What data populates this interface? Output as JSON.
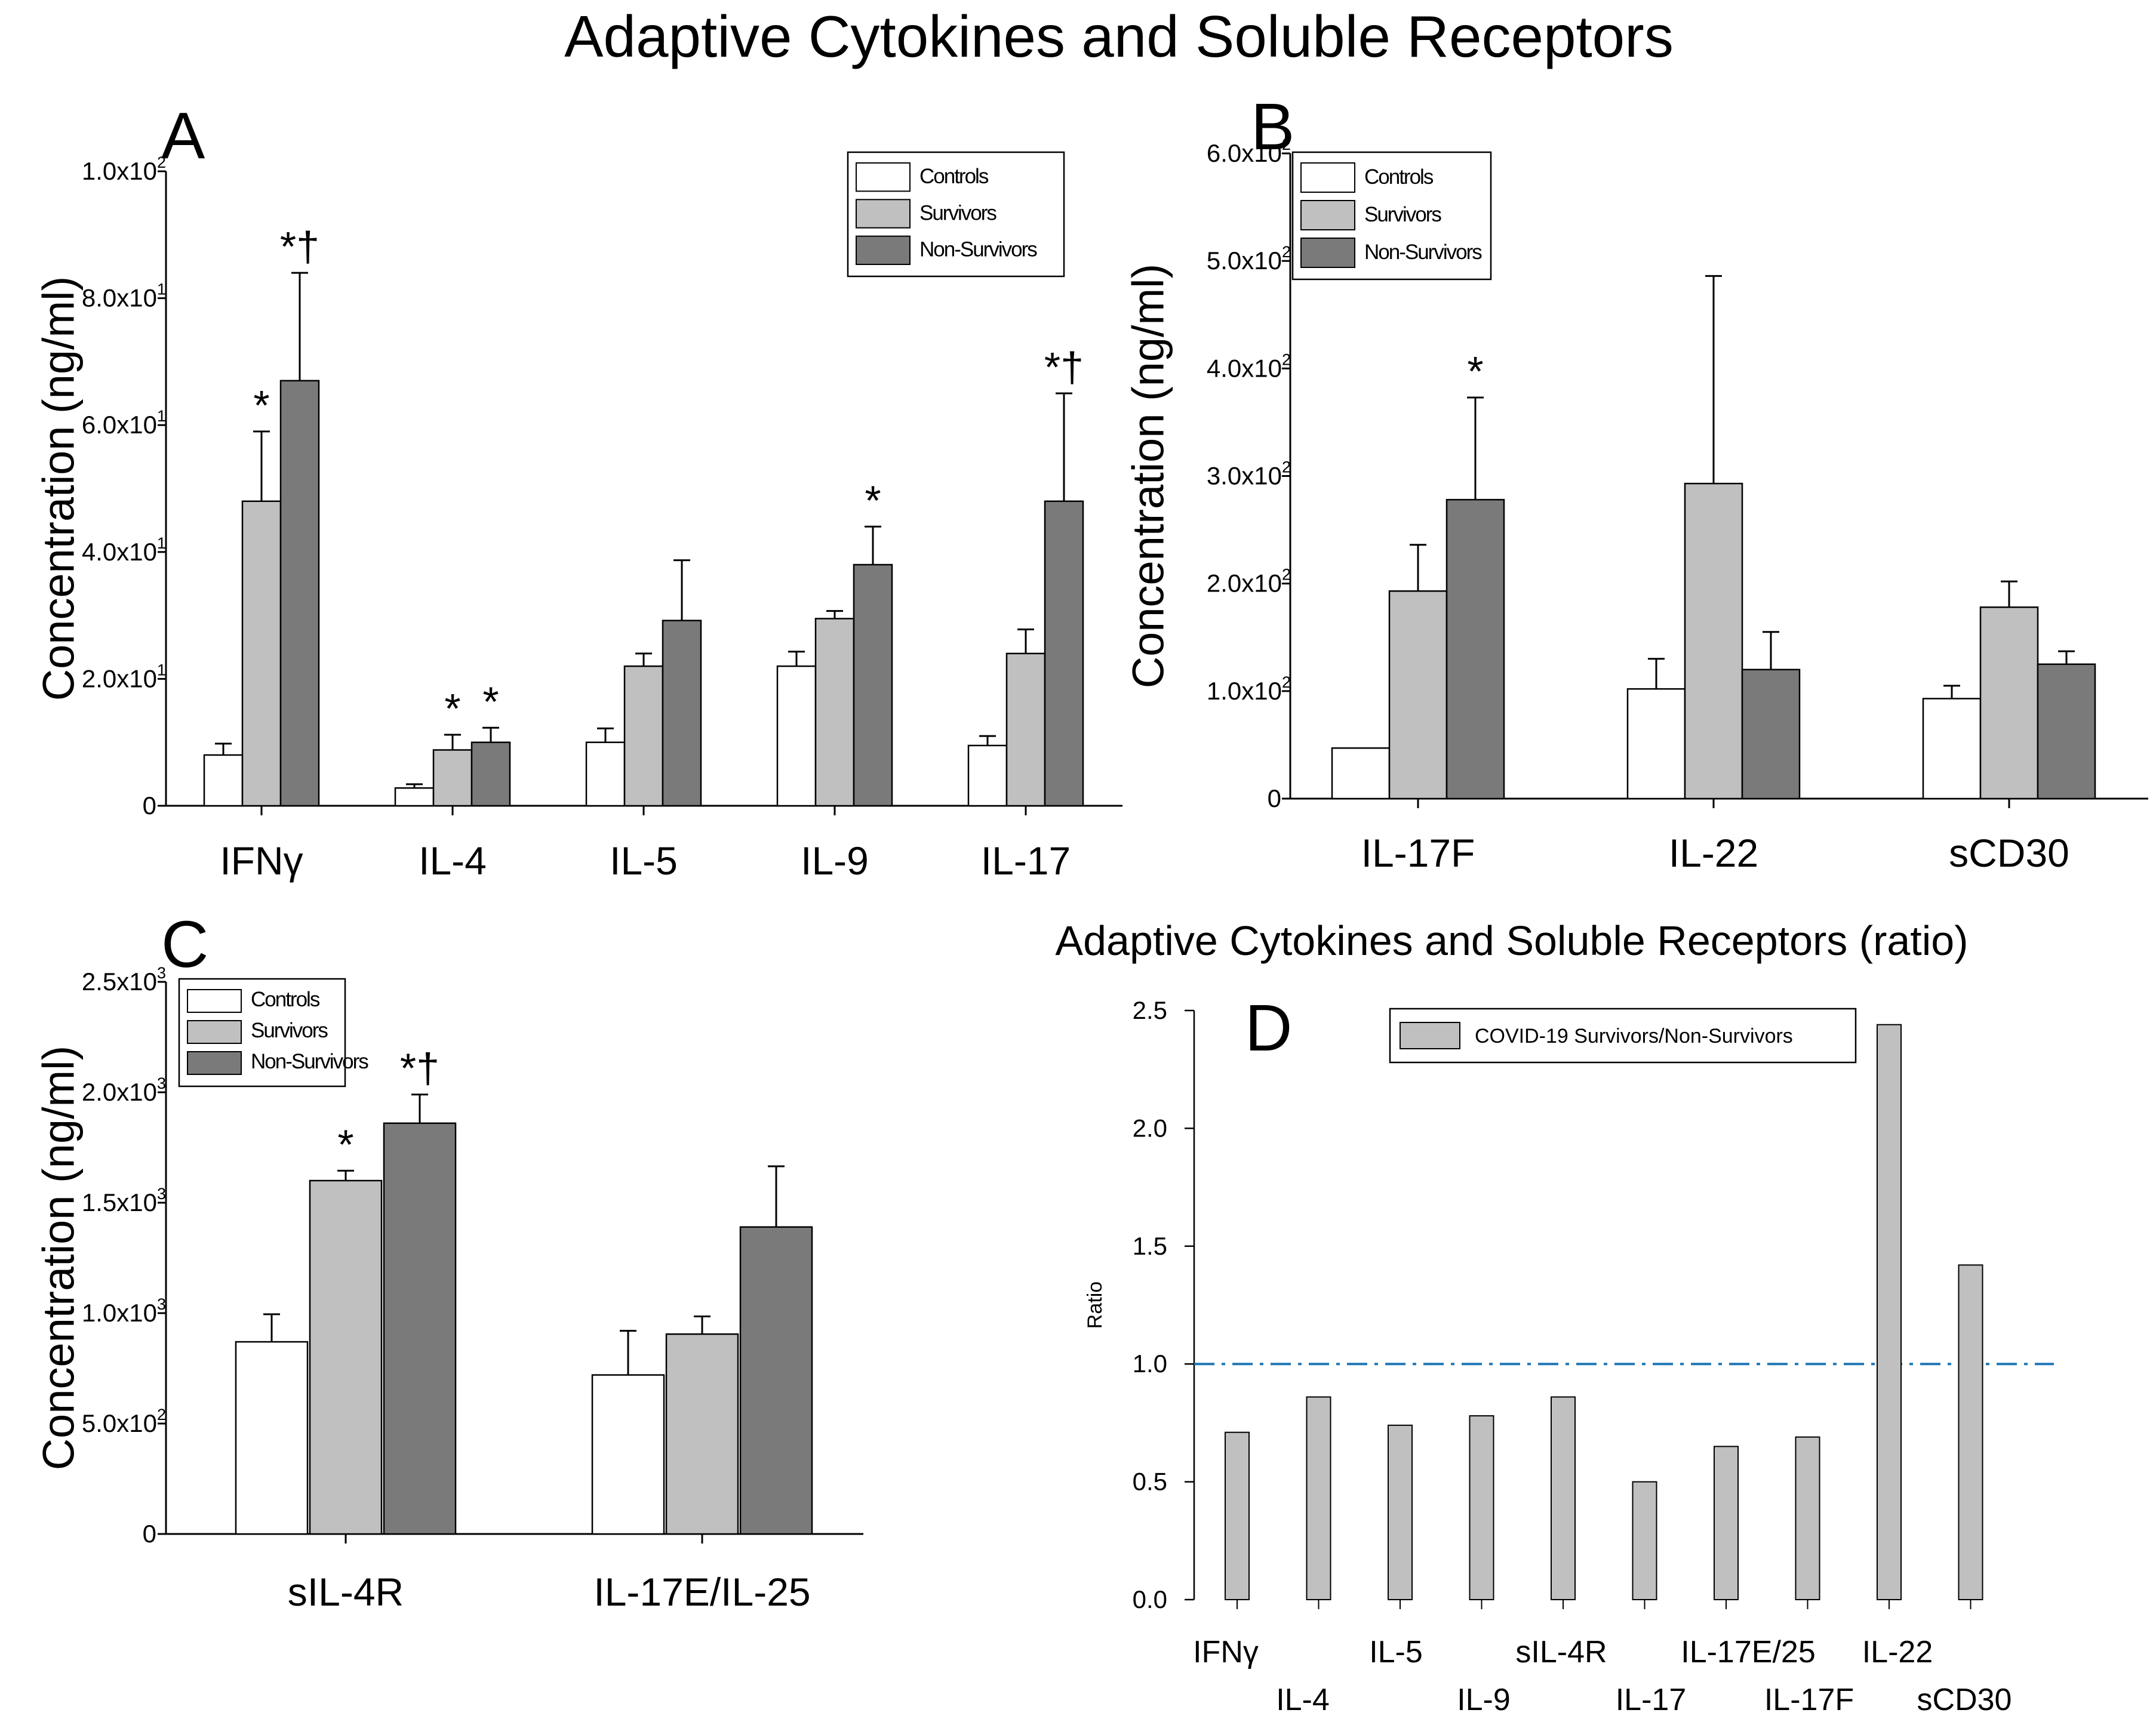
{
  "title": "Adaptive Cytokines and Soluble Receptors",
  "colors": {
    "controls": "#ffffff",
    "survivors": "#c0c0c0",
    "non_survivors": "#7a7a7a",
    "ratio_bar": "#c0c0c0",
    "reference_line": "#1f77b4"
  },
  "chart_data": [
    {
      "panel": "A",
      "type": "bar",
      "ylabel": "Concentration  (ng/ml)",
      "ylim": [
        0,
        100
      ],
      "yticks": [
        {
          "value": 0,
          "base": "0",
          "exp": ""
        },
        {
          "value": 20,
          "base": "2.0x10",
          "exp": "1"
        },
        {
          "value": 40,
          "base": "4.0x10",
          "exp": "1"
        },
        {
          "value": 60,
          "base": "6.0x10",
          "exp": "1"
        },
        {
          "value": 80,
          "base": "8.0x10",
          "exp": "1"
        },
        {
          "value": 100,
          "base": "1.0x10",
          "exp": "2"
        }
      ],
      "legend": {
        "position": "top-right",
        "entries": [
          "Controls",
          "Survivors",
          "Non-Survivors"
        ]
      },
      "categories": [
        "IFNγ",
        "IL-4",
        "IL-5",
        "IL-9",
        "IL-17"
      ],
      "series": [
        {
          "name": "Controls",
          "values": [
            8,
            2.8,
            10,
            22,
            9.5
          ],
          "errors": [
            1.8,
            0.6,
            2.2,
            2.3,
            1.5
          ]
        },
        {
          "name": "Survivors",
          "values": [
            48,
            8.8,
            22,
            29.5,
            24
          ],
          "errors": [
            11,
            2.4,
            2,
            1.2,
            3.8
          ]
        },
        {
          "name": "Non-Survivors",
          "values": [
            67,
            10,
            29.2,
            38,
            48
          ],
          "errors": [
            17,
            2.3,
            9.5,
            6,
            17
          ]
        }
      ],
      "annotations": [
        {
          "category": 0,
          "series": 1,
          "text": "*"
        },
        {
          "category": 0,
          "series": 2,
          "text": "*†"
        },
        {
          "category": 1,
          "series": 1,
          "text": "*"
        },
        {
          "category": 1,
          "series": 2,
          "text": "*"
        },
        {
          "category": 3,
          "series": 2,
          "text": "*"
        },
        {
          "category": 4,
          "series": 2,
          "text": "*†"
        }
      ]
    },
    {
      "panel": "B",
      "type": "bar",
      "ylabel": "Concentration  (ng/ml)",
      "ylim": [
        0,
        600
      ],
      "yticks": [
        {
          "value": 0,
          "base": "0",
          "exp": ""
        },
        {
          "value": 100,
          "base": "1.0x10",
          "exp": "2"
        },
        {
          "value": 200,
          "base": "2.0x10",
          "exp": "2"
        },
        {
          "value": 300,
          "base": "3.0x10",
          "exp": "2"
        },
        {
          "value": 400,
          "base": "4.0x10",
          "exp": "2"
        },
        {
          "value": 500,
          "base": "5.0x10",
          "exp": "2"
        },
        {
          "value": 600,
          "base": "6.0x10",
          "exp": "2"
        }
      ],
      "legend": {
        "position": "top-left",
        "entries": [
          "Controls",
          "Survivors",
          "Non-Survivors"
        ]
      },
      "categories": [
        "IL-17F",
        "IL-22",
        "sCD30"
      ],
      "series": [
        {
          "name": "Controls",
          "values": [
            47,
            102,
            93
          ],
          "errors": [
            0,
            28,
            12
          ]
        },
        {
          "name": "Survivors",
          "values": [
            193,
            293,
            178
          ],
          "errors": [
            43,
            193,
            24
          ]
        },
        {
          "name": "Non-Survivors",
          "values": [
            278,
            120,
            125
          ],
          "errors": [
            95,
            35,
            12
          ]
        }
      ],
      "annotations": [
        {
          "category": 0,
          "series": 2,
          "text": "*"
        }
      ]
    },
    {
      "panel": "C",
      "type": "bar",
      "ylabel": "Concentration  (ng/ml)",
      "ylim": [
        0,
        2500
      ],
      "yticks": [
        {
          "value": 0,
          "base": "0",
          "exp": ""
        },
        {
          "value": 500,
          "base": "5.0x10",
          "exp": "2"
        },
        {
          "value": 1000,
          "base": "1.0x10",
          "exp": "3"
        },
        {
          "value": 1500,
          "base": "1.5x10",
          "exp": "3"
        },
        {
          "value": 2000,
          "base": "2.0x10",
          "exp": "3"
        },
        {
          "value": 2500,
          "base": "2.5x10",
          "exp": "3"
        }
      ],
      "legend": {
        "position": "top-left",
        "entries": [
          "Controls",
          "Survivors",
          "Non-Survivors"
        ]
      },
      "categories": [
        "sIL-4R",
        "IL-17E/IL-25"
      ],
      "series": [
        {
          "name": "Controls",
          "values": [
            870,
            720
          ],
          "errors": [
            125,
            200
          ]
        },
        {
          "name": "Survivors",
          "values": [
            1600,
            905
          ],
          "errors": [
            45,
            80
          ]
        },
        {
          "name": "Non-Survivors",
          "values": [
            1860,
            1390
          ],
          "errors": [
            130,
            275
          ]
        }
      ],
      "annotations": [
        {
          "category": 0,
          "series": 1,
          "text": "*"
        },
        {
          "category": 0,
          "series": 2,
          "text": "*†"
        }
      ]
    },
    {
      "panel": "D",
      "type": "bar",
      "title": "Adaptive Cytokines and Soluble Receptors (ratio)",
      "ylabel": "Ratio",
      "ylim": [
        0,
        2.5
      ],
      "yticks": [
        "0.0",
        "0.5",
        "1.0",
        "1.5",
        "2.0",
        "2.5"
      ],
      "reference_line": 1.0,
      "legend": {
        "position": "top-center",
        "entries": [
          "COVID-19 Survivors/Non-Survivors"
        ]
      },
      "categories": [
        "IFNγ",
        "IL-4",
        "IL-5",
        "IL-9",
        "sIL-4R",
        "IL-17",
        "IL-17E/25",
        "IL-17F",
        "IL-22",
        "sCD30"
      ],
      "series": [
        {
          "name": "COVID-19 Survivors/Non-Survivors",
          "values": [
            0.71,
            0.86,
            0.74,
            0.78,
            0.86,
            0.5,
            0.65,
            0.69,
            2.44,
            1.42
          ]
        }
      ]
    }
  ]
}
